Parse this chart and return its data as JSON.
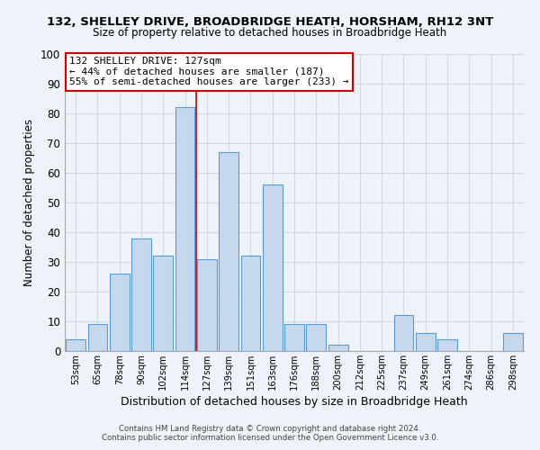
{
  "title_line1": "132, SHELLEY DRIVE, BROADBRIDGE HEATH, HORSHAM, RH12 3NT",
  "title_line2": "Size of property relative to detached houses in Broadbridge Heath",
  "xlabel": "Distribution of detached houses by size in Broadbridge Heath",
  "ylabel": "Number of detached properties",
  "bar_labels": [
    "53sqm",
    "65sqm",
    "78sqm",
    "90sqm",
    "102sqm",
    "114sqm",
    "127sqm",
    "139sqm",
    "151sqm",
    "163sqm",
    "176sqm",
    "188sqm",
    "200sqm",
    "212sqm",
    "225sqm",
    "237sqm",
    "249sqm",
    "261sqm",
    "274sqm",
    "286sqm",
    "298sqm"
  ],
  "bar_heights": [
    4,
    9,
    26,
    38,
    32,
    82,
    31,
    67,
    32,
    56,
    9,
    9,
    2,
    0,
    0,
    12,
    6,
    4,
    0,
    0,
    6
  ],
  "bar_color": "#c5d8ed",
  "bar_edge_color": "#5b9bd5",
  "bar_edge_width": 0.8,
  "vline_color": "#cc0000",
  "vline_x_index": 5.5,
  "annotation_title": "132 SHELLEY DRIVE: 127sqm",
  "annotation_line2": "← 44% of detached houses are smaller (187)",
  "annotation_line3": "55% of semi-detached houses are larger (233) →",
  "annotation_box_color": "#ffffff",
  "annotation_box_edge_color": "#cc0000",
  "ylim": [
    0,
    100
  ],
  "yticks": [
    0,
    10,
    20,
    30,
    40,
    50,
    60,
    70,
    80,
    90,
    100
  ],
  "grid_color": "#d0d8e4",
  "bg_color": "#eef3f9",
  "footnote1": "Contains HM Land Registry data © Crown copyright and database right 2024.",
  "footnote2": "Contains public sector information licensed under the Open Government Licence v3.0."
}
